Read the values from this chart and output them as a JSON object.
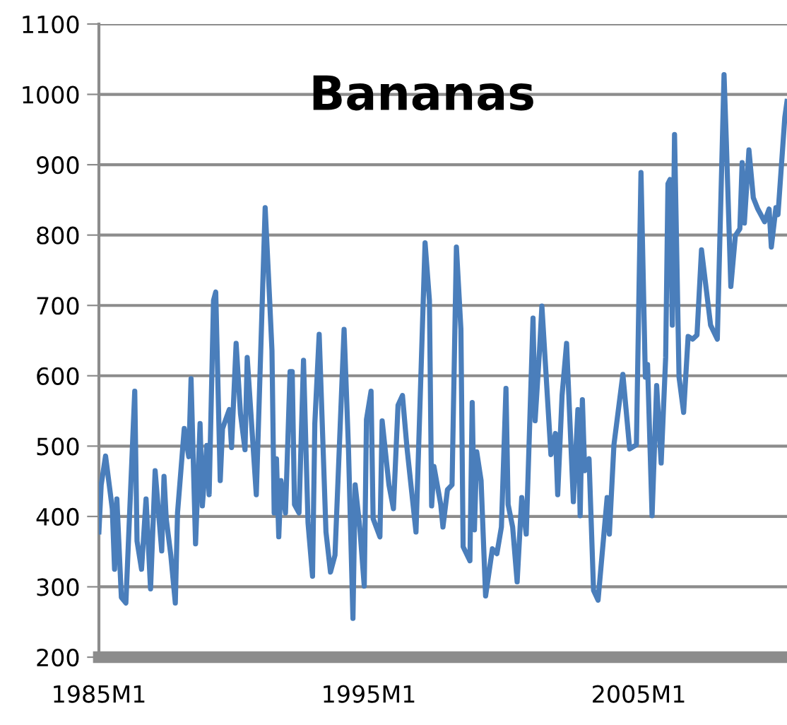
{
  "chart_data": {
    "type": "line",
    "title": "Bananas",
    "x": [
      "1985-01",
      "1985-02",
      "1985-04",
      "1985-07",
      "1985-08",
      "1985-09",
      "1985-11",
      "1986-01",
      "1986-05",
      "1986-06",
      "1986-08",
      "1986-10",
      "1986-12",
      "1987-02",
      "1987-05",
      "1987-06",
      "1987-07",
      "1987-09",
      "1987-11",
      "1987-12",
      "1988-03",
      "1988-05",
      "1988-06",
      "1988-08",
      "1988-10",
      "1988-11",
      "1989-01",
      "1989-02",
      "1989-04",
      "1989-05",
      "1989-07",
      "1989-08",
      "1989-11",
      "1989-12",
      "1990-02",
      "1990-04",
      "1990-06",
      "1990-07",
      "1990-11",
      "1991-03",
      "1991-05",
      "1991-06",
      "1991-07",
      "1991-08",
      "1991-09",
      "1991-10",
      "1991-12",
      "1992-02",
      "1992-03",
      "1992-04",
      "1992-06",
      "1992-08",
      "1992-10",
      "1992-12",
      "1993-01",
      "1993-03",
      "1993-06",
      "1993-08",
      "1993-10",
      "1994-02",
      "1994-04",
      "1994-06",
      "1994-07",
      "1994-09",
      "1994-11",
      "1994-12",
      "1995-02",
      "1995-03",
      "1995-06",
      "1995-07",
      "1995-10",
      "1995-12",
      "1996-02",
      "1996-04",
      "1996-06",
      "1996-10",
      "1997-02",
      "1997-04",
      "1997-05",
      "1997-06",
      "1997-09",
      "1997-10",
      "1997-12",
      "1998-02",
      "1998-04",
      "1998-06",
      "1998-07",
      "1998-10",
      "1998-11",
      "1998-12",
      "1999-01",
      "1999-03",
      "1999-05",
      "1999-08",
      "1999-10",
      "1999-12",
      "2000-02",
      "2000-03",
      "2000-05",
      "2000-07",
      "2000-09",
      "2000-11",
      "2001-02",
      "2001-03",
      "2001-05",
      "2001-06",
      "2001-10",
      "2001-12",
      "2002-01",
      "2002-03",
      "2002-05",
      "2002-08",
      "2002-10",
      "2002-11",
      "2002-12",
      "2003-01",
      "2003-03",
      "2003-05",
      "2003-07",
      "2003-11",
      "2003-12",
      "2004-02",
      "2004-06",
      "2004-09",
      "2004-12",
      "2005-02",
      "2005-04",
      "2005-05",
      "2005-07",
      "2005-09",
      "2005-11",
      "2006-01",
      "2006-02",
      "2006-03",
      "2006-04",
      "2006-05",
      "2006-07",
      "2006-09",
      "2006-11",
      "2007-01",
      "2007-03",
      "2007-05",
      "2007-09",
      "2007-12",
      "2008-03",
      "2008-04",
      "2008-06",
      "2008-08",
      "2008-10",
      "2008-11",
      "2008-12",
      "2009-02",
      "2009-04",
      "2009-06",
      "2009-09",
      "2009-11",
      "2009-12",
      "2010-02",
      "2010-03",
      "2010-06",
      "2010-07"
    ],
    "series": [
      {
        "color": "#4a7ebb",
        "values": [
          378,
          445,
          486,
          411,
          325,
          425,
          285,
          277,
          578,
          365,
          325,
          425,
          297,
          465,
          351,
          457,
          397,
          345,
          277,
          405,
          525,
          485,
          596,
          361,
          532,
          415,
          501,
          431,
          707,
          719,
          451,
          525,
          552,
          498,
          646,
          546,
          495,
          626,
          431,
          839,
          707,
          636,
          405,
          482,
          371,
          451,
          405,
          606,
          606,
          417,
          405,
          622,
          391,
          315,
          532,
          659,
          378,
          321,
          345,
          666,
          498,
          255,
          445,
          385,
          301,
          538,
          578,
          397,
          371,
          536,
          445,
          411,
          558,
          572,
          498,
          378,
          789,
          707,
          415,
          471,
          417,
          385,
          438,
          445,
          783,
          666,
          357,
          337,
          562,
          381,
          492,
          451,
          287,
          354,
          347,
          385,
          582,
          417,
          385,
          307,
          427,
          375,
          682,
          536,
          638,
          699,
          488,
          518,
          431,
          572,
          646,
          421,
          552,
          401,
          566,
          465,
          482,
          295,
          281,
          427,
          375,
          502,
          602,
          496,
          502,
          889,
          598,
          616,
          401,
          586,
          476,
          626,
          873,
          879,
          672,
          943,
          598,
          548,
          656,
          652,
          658,
          779,
          672,
          652,
          1028,
          933,
          727,
          799,
          809,
          903,
          817,
          921,
          853,
          837,
          819,
          837,
          783,
          839,
          829,
          967,
          990
        ]
      }
    ],
    "xlim": [
      "1985-01",
      "2010-07"
    ],
    "xticks": [
      {
        "value": "1985-01",
        "label": "1985M1"
      },
      {
        "value": "1995-01",
        "label": "1995M1"
      },
      {
        "value": "2005-01",
        "label": "2005M1"
      }
    ],
    "ylim": [
      200,
      1100
    ],
    "yticks": [
      200,
      300,
      400,
      500,
      600,
      700,
      800,
      900,
      1000,
      1100
    ],
    "grid": "y",
    "marker": "none",
    "line_style": "solid"
  }
}
